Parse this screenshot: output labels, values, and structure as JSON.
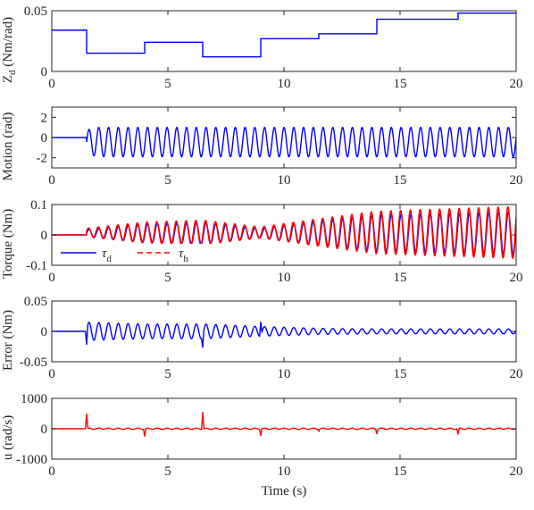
{
  "chart_data": [
    {
      "type": "line",
      "ylabel": "Z_d (Nm/rad)",
      "ylabel_main": "Z",
      "ylabel_sub": "d",
      "ylabel_unit": " (Nm/rad)",
      "xlim": [
        0,
        20
      ],
      "ylim": [
        0,
        0.05
      ],
      "xticks": [
        0,
        5,
        10,
        15,
        20
      ],
      "yticks": [
        0,
        0.05
      ],
      "ytick_labels": [
        "0",
        "0.05"
      ],
      "grid": false,
      "series": [
        {
          "color": "#0000ff",
          "style": "step",
          "x": [
            0,
            1.5,
            4.0,
            6.5,
            9.0,
            11.5,
            14.0,
            17.5,
            20
          ],
          "values": [
            0.034,
            0.015,
            0.024,
            0.012,
            0.027,
            0.031,
            0.043,
            0.048,
            0.048
          ]
        }
      ]
    },
    {
      "type": "line",
      "ylabel": "Motion (rad)",
      "xlim": [
        0,
        20
      ],
      "ylim": [
        -3,
        3
      ],
      "xticks": [
        0,
        5,
        10,
        15,
        20
      ],
      "yticks": [
        -2,
        0,
        2
      ],
      "ytick_labels": [
        "-2",
        "0",
        "2"
      ],
      "grid": false,
      "series": [
        {
          "color": "#0000ff",
          "style": "oscillation",
          "start": 1.5,
          "period": 0.42,
          "offset": -0.45,
          "amplitude": [
            [
              0,
              0
            ],
            [
              1.5,
              1.2
            ],
            [
              2.0,
              1.45
            ],
            [
              20,
              1.45
            ]
          ],
          "notes_segments": [
            [
              0,
              1.1,
              0.0
            ]
          ]
        }
      ]
    },
    {
      "type": "line",
      "ylabel": "Torque (Nm)",
      "xlim": [
        0,
        20
      ],
      "ylim": [
        -0.1,
        0.1
      ],
      "xticks": [
        0,
        5,
        10,
        15,
        20
      ],
      "yticks": [
        -0.1,
        0,
        0.1
      ],
      "ytick_labels": [
        "-0.1",
        "0",
        "0.1"
      ],
      "grid": false,
      "legend": {
        "position": "bottom-left",
        "entries": [
          {
            "sym": "τ",
            "sub": "d",
            "color": "#0000ff",
            "dash": "solid"
          },
          {
            "sym": "τ",
            "sub": "h",
            "color": "#ff0000",
            "dash": "dashed"
          }
        ]
      },
      "series": [
        {
          "name": "τ_d",
          "color": "#0000ff",
          "style": "oscillation",
          "start": 1.5,
          "period": 0.42,
          "offset": 0.005,
          "amplitude": [
            [
              0,
              0
            ],
            [
              1.5,
              0.012
            ],
            [
              4.0,
              0.03
            ],
            [
              6.5,
              0.035
            ],
            [
              9.0,
              0.015
            ],
            [
              11.5,
              0.04
            ],
            [
              14.0,
              0.06
            ],
            [
              20,
              0.07
            ]
          ]
        },
        {
          "name": "τ_h",
          "color": "#ff0000",
          "style": "oscillation",
          "start": 1.5,
          "period": 0.42,
          "offset": 0.008,
          "phase": 0.3,
          "amplitude": [
            [
              0,
              0
            ],
            [
              1.5,
              0.014
            ],
            [
              4.0,
              0.034
            ],
            [
              6.5,
              0.04
            ],
            [
              9.0,
              0.018
            ],
            [
              11.5,
              0.045
            ],
            [
              14.0,
              0.07
            ],
            [
              20,
              0.085
            ]
          ]
        }
      ]
    },
    {
      "type": "line",
      "ylabel": "Error (Nm)",
      "xlim": [
        0,
        20
      ],
      "ylim": [
        -0.05,
        0.05
      ],
      "xticks": [
        0,
        5,
        10,
        15,
        20
      ],
      "yticks": [
        -0.05,
        0,
        0.05
      ],
      "ytick_labels": [
        "-0.05",
        "0",
        "0.05"
      ],
      "grid": false,
      "series": [
        {
          "color": "#0000ff",
          "style": "oscillation",
          "start": 1.5,
          "period": 0.42,
          "offset": 0.0,
          "amplitude": [
            [
              0,
              0
            ],
            [
              1.5,
              0.015
            ],
            [
              4.0,
              0.012
            ],
            [
              6.5,
              0.012
            ],
            [
              9.0,
              0.008
            ],
            [
              11.5,
              0.005
            ],
            [
              14.0,
              0.004
            ],
            [
              20,
              0.004
            ]
          ],
          "spikes": [
            [
              1.5,
              -0.022
            ],
            [
              6.5,
              -0.02
            ],
            [
              9.0,
              0.022
            ]
          ]
        }
      ]
    },
    {
      "type": "line",
      "ylabel": "u (rad/s)",
      "xlabel": "Time (s)",
      "xlim": [
        0,
        20
      ],
      "ylim": [
        -1000,
        1000
      ],
      "xticks": [
        0,
        5,
        10,
        15,
        20
      ],
      "yticks": [
        -1000,
        0,
        1000
      ],
      "ytick_labels": [
        "-1000",
        "0",
        "1000"
      ],
      "grid": false,
      "series": [
        {
          "color": "#ff0000",
          "style": "oscillation",
          "start": 1.5,
          "period": 0.42,
          "offset": 0,
          "amplitude": [
            [
              0,
              0
            ],
            [
              1.5,
              20
            ],
            [
              20,
              20
            ]
          ],
          "spikes": [
            [
              1.5,
              500
            ],
            [
              4.0,
              -250
            ],
            [
              6.5,
              560
            ],
            [
              9.0,
              -220
            ],
            [
              11.5,
              -60
            ],
            [
              14.0,
              -150
            ],
            [
              17.5,
              -200
            ]
          ]
        }
      ]
    }
  ]
}
